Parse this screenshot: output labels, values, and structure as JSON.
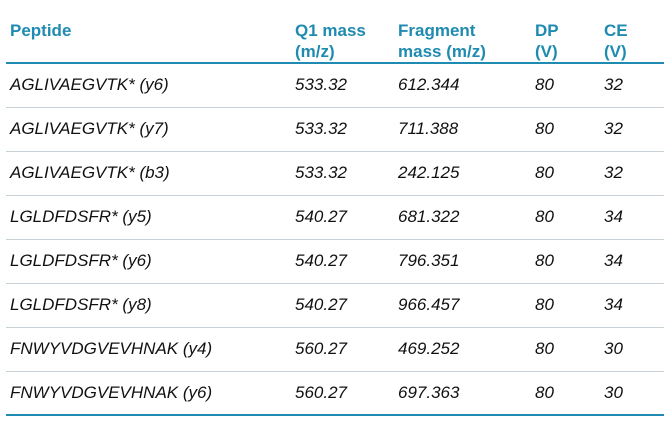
{
  "table": {
    "headers": {
      "peptide": "Peptide",
      "q1_line1": "Q1 mass",
      "q1_line2": "(m/z)",
      "frag_line1": "Fragment",
      "frag_line2": "mass (m/z)",
      "dp_line1": "DP",
      "dp_line2": "(V)",
      "ce_line1": "CE",
      "ce_line2": "(V)"
    },
    "rows": [
      {
        "peptide": "AGLIVAEGVTK* (y6)",
        "q1": "533.32",
        "fragment": "612.344",
        "dp": "80",
        "ce": "32"
      },
      {
        "peptide": "AGLIVAEGVTK* (y7)",
        "q1": "533.32",
        "fragment": "711.388",
        "dp": "80",
        "ce": "32"
      },
      {
        "peptide": "AGLIVAEGVTK* (b3)",
        "q1": "533.32",
        "fragment": "242.125",
        "dp": "80",
        "ce": "32"
      },
      {
        "peptide": "LGLDFDSFR* (y5)",
        "q1": "540.27",
        "fragment": "681.322",
        "dp": "80",
        "ce": "34"
      },
      {
        "peptide": "LGLDFDSFR* (y6)",
        "q1": "540.27",
        "fragment": "796.351",
        "dp": "80",
        "ce": "34"
      },
      {
        "peptide": "LGLDFDSFR* (y8)",
        "q1": "540.27",
        "fragment": "966.457",
        "dp": "80",
        "ce": "34"
      },
      {
        "peptide": "FNWYVDGVEVHNAK (y4)",
        "q1": "560.27",
        "fragment": "469.252",
        "dp": "80",
        "ce": "30"
      },
      {
        "peptide": "FNWYVDGVEVHNAK (y6)",
        "q1": "560.27",
        "fragment": "697.363",
        "dp": "80",
        "ce": "30"
      }
    ]
  },
  "colors": {
    "header_text": "#1f8bb0",
    "rule": "#1f8bb0",
    "row_divider": "#c8d3d8"
  }
}
